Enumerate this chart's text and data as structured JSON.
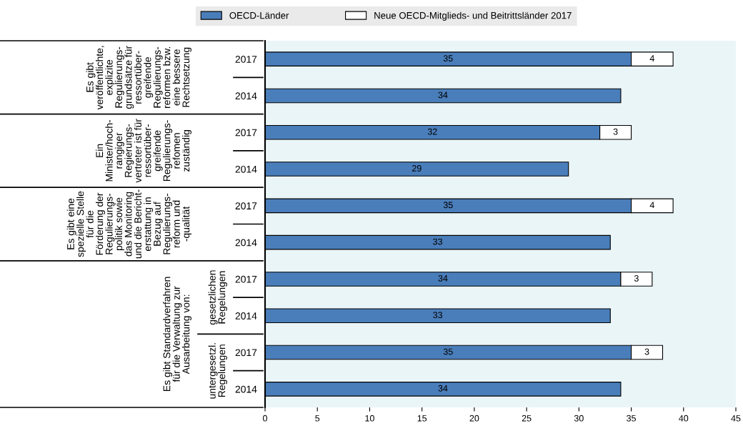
{
  "chart_data": {
    "type": "bar",
    "orientation": "horizontal",
    "stacked": true,
    "categories": [
      "2017",
      "2014",
      "2017",
      "2014",
      "2017",
      "2014",
      "2017",
      "2014",
      "2017",
      "2014"
    ],
    "series": [
      {
        "name": "OECD-Länder",
        "color": "#4a7ebb",
        "values": [
          35,
          34,
          32,
          29,
          35,
          33,
          34,
          33,
          35,
          34
        ]
      },
      {
        "name": "Neue OECD-Mitglieds- und Beitrittsländer 2017",
        "color": "#ffffff",
        "values": [
          4,
          null,
          3,
          null,
          4,
          null,
          3,
          null,
          3,
          null
        ]
      }
    ],
    "data_labels": true,
    "xlim": [
      0,
      45
    ],
    "xticks": [
      0,
      5,
      10,
      15,
      20,
      25,
      30,
      35,
      40,
      45
    ],
    "legend": "top",
    "grid": false,
    "annotations": [
      "Es gibt\nveröffentlichte,\nexplizite\nRegulierungs-\ngrundsätze für\nressortüber-\ngreifende\nRegulierungs-\nreformen bzw.\neine bessere\nRechtsetzung",
      "Ein\nMinister/hoch-\nrangiger\nRegierungs-\nvertreter ist für\nressortüber-\ngreifende\nRegulierungs-\nrefomen\nzuständig",
      "Es gibt eine\nspezielle Stelle\nfür die\nFörderung der\nRegulierungs-\npolitik sowie\ndas Monitoring\nund die Bericht-\nerstattung in\nBezug auf\nRegulierungs-\nreform und\n-qualität",
      "Es gibt Standardverfahren\nfür die Verwaltung zur\nAusarbeitung von:",
      "gesetzlichen\nRegelungen",
      "untergesetzl.\nRegelungen"
    ]
  }
}
